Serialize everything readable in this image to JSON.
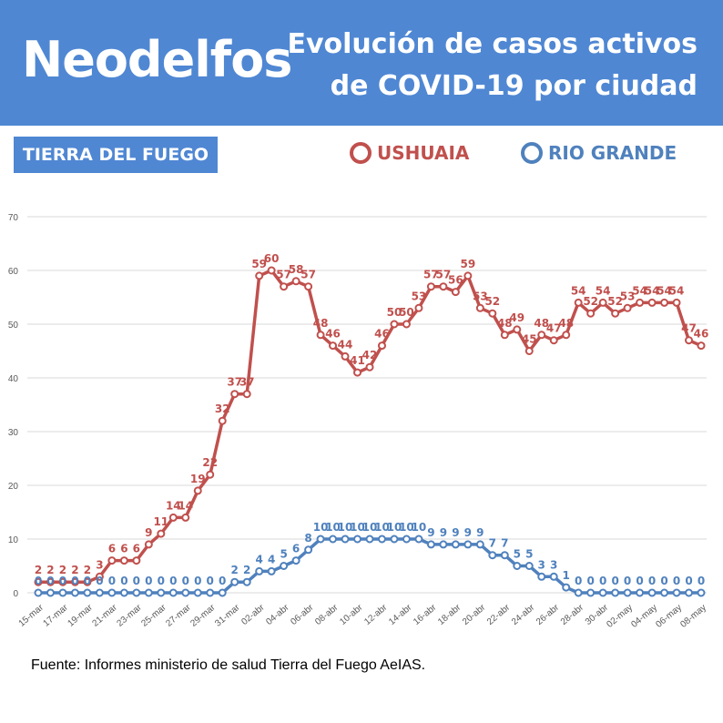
{
  "header": {
    "brand": "Neodelfos",
    "title_line1": "Evolución de casos activos",
    "title_line2": "de COVID-19 por ciudad"
  },
  "region_label": "TIERRA DEL FUEGO",
  "source": "Fuente: Informes ministerio de salud Tierra del Fuego AeIAS.",
  "colors": {
    "banner": "#4f87d3",
    "ushuaia": "#c0504d",
    "rio_grande": "#4f81bd"
  },
  "chart_data": {
    "type": "line",
    "title": "Evolución de casos activos de COVID-19 por ciudad",
    "ylim": [
      0,
      70
    ],
    "yticks": [
      0,
      10,
      20,
      30,
      40,
      50,
      60,
      70
    ],
    "grid": true,
    "legend_position": "top",
    "x": [
      "15-mar",
      "16-mar",
      "17-mar",
      "18-mar",
      "19-mar",
      "20-mar",
      "21-mar",
      "22-mar",
      "23-mar",
      "24-mar",
      "25-mar",
      "26-mar",
      "27-mar",
      "28-mar",
      "29-mar",
      "30-mar",
      "31-mar",
      "01-abr",
      "02-abr",
      "03-abr",
      "04-abr",
      "05-abr",
      "06-abr",
      "07-abr",
      "08-abr",
      "09-abr",
      "10-abr",
      "11-abr",
      "12-abr",
      "13-abr",
      "14-abr",
      "15-abr",
      "16-abr",
      "17-abr",
      "18-abr",
      "19-abr",
      "20-abr",
      "21-abr",
      "22-abr",
      "23-abr",
      "24-abr",
      "25-abr",
      "26-abr",
      "27-abr",
      "28-abr",
      "29-abr",
      "30-abr",
      "01-may",
      "02-may",
      "03-may",
      "04-may",
      "05-may",
      "06-may",
      "07-may",
      "08-may"
    ],
    "x_tick_labels": [
      "15-mar",
      "17-mar",
      "19-mar",
      "21-mar",
      "23-mar",
      "25-mar",
      "27-mar",
      "29-mar",
      "31-mar",
      "02-abr",
      "04-abr",
      "06-abr",
      "08-abr",
      "10-abr",
      "12-abr",
      "14-abr",
      "16-abr",
      "18-abr",
      "20-abr",
      "22-abr",
      "24-abr",
      "26-abr",
      "28-abr",
      "30-abr",
      "02-may",
      "04-may",
      "06-may",
      "08-may"
    ],
    "series": [
      {
        "name": "USHUAIA",
        "color": "#c0504d",
        "values": [
          2,
          2,
          2,
          2,
          2,
          3,
          6,
          6,
          6,
          9,
          11,
          14,
          14,
          19,
          22,
          32,
          37,
          37,
          59,
          60,
          57,
          58,
          57,
          48,
          46,
          44,
          41,
          42,
          46,
          50,
          50,
          53,
          57,
          57,
          56,
          59,
          53,
          52,
          48,
          49,
          45,
          48,
          47,
          48,
          54,
          52,
          54,
          52,
          53,
          54,
          54,
          54,
          54,
          47,
          46
        ]
      },
      {
        "name": "RIO GRANDE",
        "color": "#4f81bd",
        "values": [
          0,
          0,
          0,
          0,
          0,
          0,
          0,
          0,
          0,
          0,
          0,
          0,
          0,
          0,
          0,
          0,
          2,
          2,
          4,
          4,
          5,
          6,
          8,
          10,
          10,
          10,
          10,
          10,
          10,
          10,
          10,
          10,
          9,
          9,
          9,
          9,
          9,
          7,
          7,
          5,
          5,
          3,
          3,
          1,
          0,
          0,
          0,
          0,
          0,
          0,
          0,
          0,
          0,
          0,
          0
        ]
      }
    ]
  }
}
